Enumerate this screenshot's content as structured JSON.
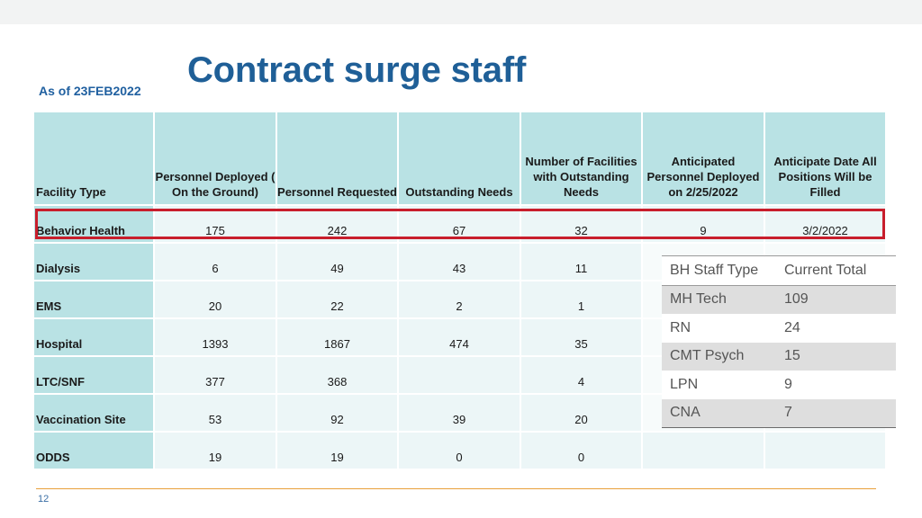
{
  "title": "Contract surge staff",
  "as_of": "As of 23FEB2022",
  "page_number": "12",
  "main_table": {
    "headers": [
      "Facility Type",
      "Personnel Deployed ( On the Ground)",
      "Personnel Requested",
      "Outstanding Needs",
      "Number of Facilities with Outstanding Needs",
      "Anticipated Personnel Deployed on 2/25/2022",
      "Anticipate Date All Positions Will be Filled"
    ],
    "rows": [
      [
        "Behavior Health",
        "175",
        "242",
        "67",
        "32",
        "9",
        "3/2/2022"
      ],
      [
        "Dialysis",
        "6",
        "49",
        "43",
        "11",
        "",
        ""
      ],
      [
        "EMS",
        "20",
        "22",
        "2",
        "1",
        "",
        ""
      ],
      [
        "Hospital",
        "1393",
        "1867",
        "474",
        "35",
        "",
        ""
      ],
      [
        "LTC/SNF",
        "377",
        "368",
        "",
        "4",
        "",
        ""
      ],
      [
        "Vaccination Site",
        "53",
        "92",
        "39",
        "20",
        "",
        ""
      ],
      [
        "ODDS",
        "19",
        "19",
        "0",
        "0",
        "",
        ""
      ]
    ]
  },
  "bh_table": {
    "headers": [
      "BH Staff Type",
      "Current Total"
    ],
    "rows": [
      [
        "MH Tech",
        "109"
      ],
      [
        "RN",
        "24"
      ],
      [
        "CMT Psych",
        "15"
      ],
      [
        "LPN",
        "9"
      ],
      [
        "CNA",
        "7"
      ]
    ]
  },
  "colors": {
    "title": "#1f5f97",
    "header_fill": "#b9e2e4",
    "cell_fill": "#ecf6f7",
    "highlight_border": "#c81e2c",
    "footer_line": "#e8a03a"
  }
}
